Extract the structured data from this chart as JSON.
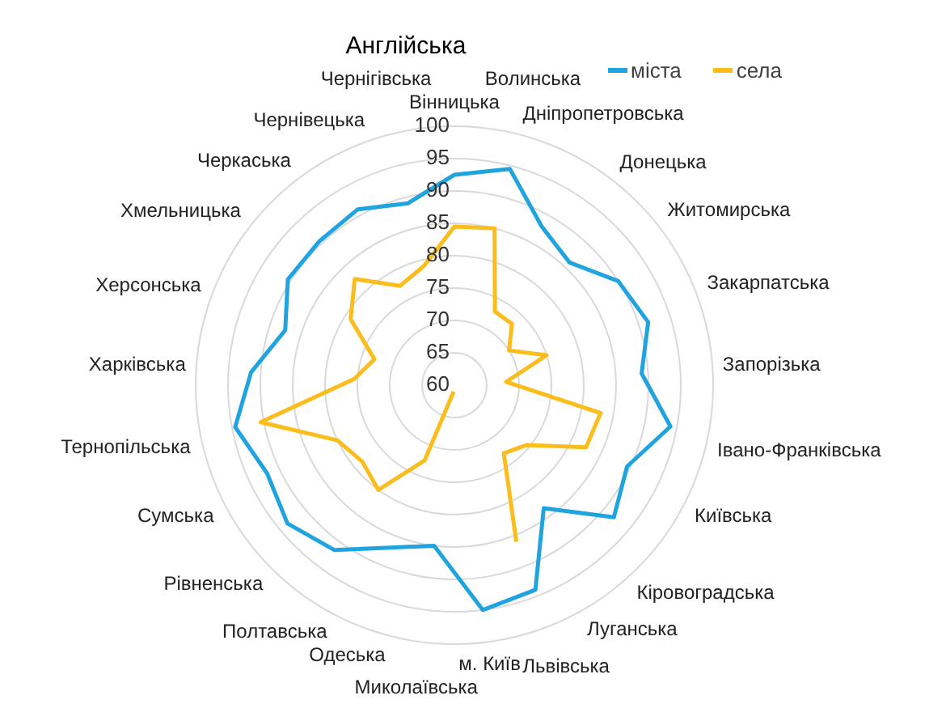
{
  "chart_data": {
    "type": "radar",
    "title": "Англійська",
    "categories": [
      "Вінницька",
      "Волинська",
      "Дніпропетровська",
      "Донецька",
      "Житомирська",
      "Закарпатська",
      "Запорізька",
      "Івано-Франківська",
      "Київська",
      "Кіровоградська",
      "Луганська",
      "Львівська",
      "м. Київ",
      "Миколаївська",
      "Одеська",
      "Полтавська",
      "Рівненська",
      "Сумська",
      "Тернопільська",
      "Харківська",
      "Херсонська",
      "Хмельницька",
      "Черкаська",
      "Чернівецька",
      "Чернігівська"
    ],
    "series": [
      {
        "name": "міста",
        "color": "#20a4df",
        "values": [
          92.5,
          94.5,
          88,
          86,
          90,
          91.5,
          89,
          94,
          89.5,
          92,
          83.5,
          94,
          95,
          85,
          87,
          91.5,
          93.5,
          92,
          94.5,
          91.5,
          87.5,
          90.5,
          90.5,
          91,
          89
        ]
      },
      {
        "name": "села",
        "color": "#fbbd1c",
        "values": [
          84.5,
          85,
          73,
          73,
          70,
          75,
          68,
          83,
          82.5,
          74.5,
          73,
          86,
          null,
          61,
          72.5,
          80,
          78.5,
          80,
          90.5,
          75.5,
          73,
          79,
          82.5,
          77.5,
          79
        ]
      }
    ],
    "ylim": [
      60,
      100
    ],
    "yticks": [
      60,
      65,
      70,
      75,
      80,
      85,
      90,
      95,
      100
    ],
    "grid": true,
    "legend": "top right",
    "marker": "none"
  }
}
